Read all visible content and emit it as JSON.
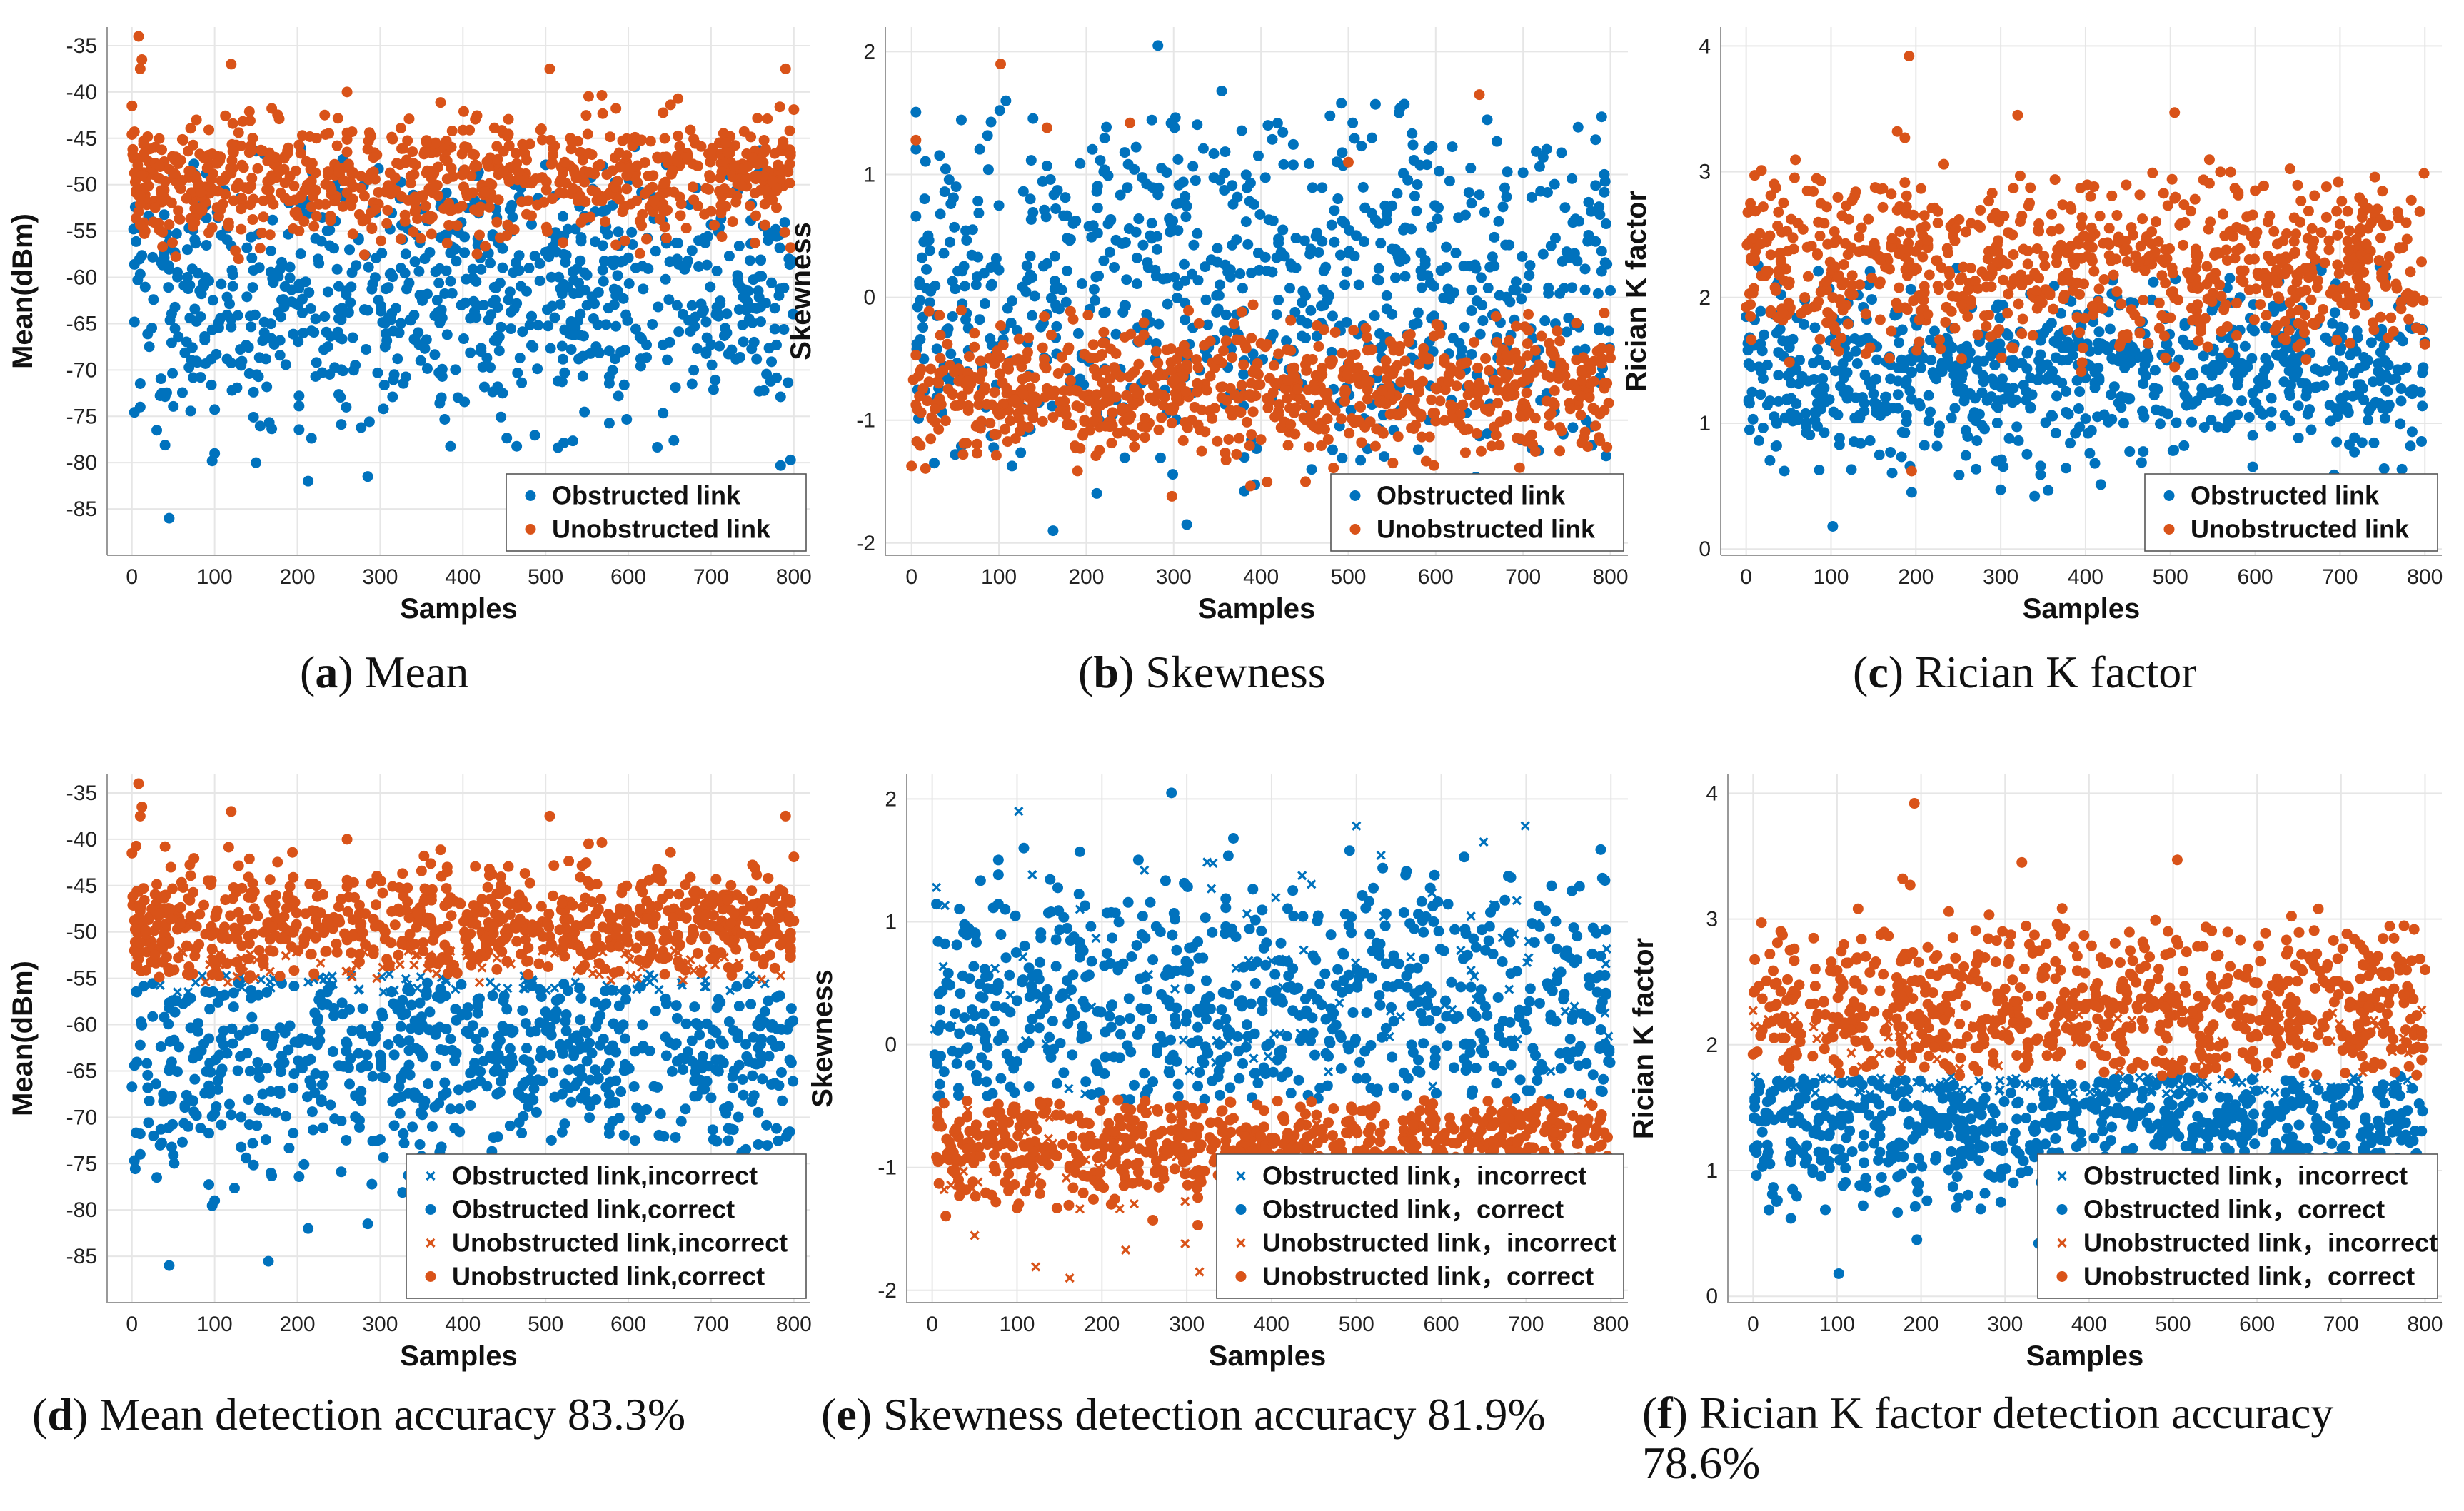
{
  "colors": {
    "blue": "#0072BD",
    "orange": "#D95319",
    "grid": "#e6e6e6",
    "axis": "#999999"
  },
  "chart_data": [
    {
      "id": "a",
      "type": "scatter",
      "marker": "dot",
      "xlabel": "Samples",
      "ylabel": "Mean(dBm)",
      "xlim": [
        -30,
        820
      ],
      "ylim": [
        -90,
        -33
      ],
      "xticks": [
        0,
        100,
        200,
        300,
        400,
        500,
        600,
        700,
        800
      ],
      "yticks": [
        -85,
        -80,
        -75,
        -70,
        -65,
        -60,
        -55,
        -50,
        -45,
        -40,
        -35
      ],
      "legend_position": "bottom-right",
      "series": [
        {
          "name": "Obstructed link",
          "color_key": "blue",
          "marker": "dot",
          "n": 800,
          "gen": {
            "kind": "gauss",
            "mean": -62,
            "sd": 7,
            "min": -86,
            "max": -45,
            "seed": 11
          },
          "points": [
            [
              45,
              -86
            ],
            [
              213,
              -82
            ],
            [
              285,
              -81.5
            ],
            [
              30,
              -76.5
            ],
            [
              10,
              -74
            ],
            [
              100,
              -79
            ],
            [
              150,
              -80
            ]
          ]
        },
        {
          "name": "Unobstructed link",
          "color_key": "orange",
          "marker": "dot",
          "n": 800,
          "gen": {
            "kind": "gauss",
            "mean": -49.5,
            "sd": 3.2,
            "min": -58,
            "max": -40,
            "seed": 23
          },
          "points": [
            [
              8,
              -34
            ],
            [
              12,
              -36.5
            ],
            [
              10,
              -37.5
            ],
            [
              120,
              -37
            ],
            [
              505,
              -37.5
            ],
            [
              790,
              -37.5
            ],
            [
              0,
              -41.5
            ],
            [
              260,
              -40
            ]
          ]
        }
      ]
    },
    {
      "id": "b",
      "type": "scatter",
      "marker": "dot",
      "xlabel": "Samples",
      "ylabel": "Skewness",
      "xlim": [
        -30,
        820
      ],
      "ylim": [
        -2.1,
        2.2
      ],
      "xticks": [
        0,
        100,
        200,
        300,
        400,
        500,
        600,
        700,
        800
      ],
      "yticks": [
        -2,
        -1,
        0,
        1,
        2
      ],
      "legend_position": "bottom-right",
      "series": [
        {
          "name": "Obstructed link",
          "color_key": "blue",
          "marker": "dot",
          "n": 800,
          "gen": {
            "kind": "gauss",
            "mean": 0.15,
            "sd": 0.75,
            "min": -1.6,
            "max": 1.6,
            "seed": 37
          },
          "points": [
            [
              282,
              2.05
            ],
            [
              108,
              1.6
            ],
            [
              315,
              -1.85
            ],
            [
              162,
              -1.9
            ],
            [
              355,
              1.68
            ],
            [
              492,
              1.58
            ]
          ]
        },
        {
          "name": "Unobstructed link",
          "color_key": "orange",
          "marker": "dot",
          "n": 800,
          "gen": {
            "kind": "gauss",
            "mean": -0.75,
            "sd": 0.27,
            "min": -1.55,
            "max": 0,
            "seed": 41
          },
          "points": [
            [
              102,
              1.9
            ],
            [
              5,
              1.28
            ],
            [
              155,
              1.38
            ],
            [
              250,
              1.42
            ],
            [
              500,
              1.1
            ],
            [
              650,
              1.65
            ],
            [
              782,
              -1.5
            ],
            [
              298,
              -1.62
            ]
          ]
        }
      ]
    },
    {
      "id": "c",
      "type": "scatter",
      "marker": "dot",
      "xlabel": "Samples",
      "ylabel": "Rician K factor",
      "xlim": [
        -30,
        820
      ],
      "ylim": [
        -0.05,
        4.15
      ],
      "xticks": [
        0,
        100,
        200,
        300,
        400,
        500,
        600,
        700,
        800
      ],
      "yticks": [
        0,
        1,
        2,
        3,
        4
      ],
      "legend_position": "bottom-right",
      "series": [
        {
          "name": "Obstructed link",
          "color_key": "blue",
          "marker": "dot",
          "n": 800,
          "gen": {
            "kind": "gauss",
            "mean": 1.4,
            "sd": 0.35,
            "min": 0.35,
            "max": 2.3,
            "seed": 53
          },
          "points": [
            [
              102,
              0.18
            ],
            [
              195,
              0.45
            ],
            [
              45,
              0.62
            ],
            [
              340,
              0.42
            ]
          ]
        },
        {
          "name": "Unobstructed link",
          "color_key": "orange",
          "marker": "dot",
          "n": 800,
          "gen": {
            "kind": "gauss",
            "mean": 2.25,
            "sd": 0.38,
            "min": 1.4,
            "max": 3.1,
            "seed": 61
          },
          "points": [
            [
              192,
              3.92
            ],
            [
              320,
              3.45
            ],
            [
              505,
              3.47
            ],
            [
              178,
              3.32
            ],
            [
              187,
              3.27
            ],
            [
              195,
              0.62
            ]
          ]
        }
      ]
    },
    {
      "id": "d",
      "type": "scatter",
      "xlabel": "Samples",
      "ylabel": "Mean(dBm)",
      "xlim": [
        -30,
        820
      ],
      "ylim": [
        -90,
        -33
      ],
      "xticks": [
        0,
        100,
        200,
        300,
        400,
        500,
        600,
        700,
        800
      ],
      "yticks": [
        -85,
        -80,
        -75,
        -70,
        -65,
        -60,
        -55,
        -50,
        -45,
        -40,
        -35
      ],
      "legend_position": "bottom-right",
      "series": [
        {
          "name": "Obstructed link,incorrect",
          "color_key": "blue",
          "marker": "x",
          "n": 70,
          "gen": {
            "kind": "uniform",
            "min": -56.5,
            "max": -54.5,
            "seed": 71
          }
        },
        {
          "name": "Obstructed link,correct",
          "color_key": "blue",
          "marker": "dot",
          "n": 720,
          "gen": {
            "kind": "gauss",
            "mean": -63,
            "sd": 6.5,
            "min": -86,
            "max": -55.5,
            "seed": 11
          },
          "points": [
            [
              45,
              -86
            ],
            [
              213,
              -82
            ],
            [
              285,
              -81.5
            ],
            [
              30,
              -76.5
            ],
            [
              10,
              -74
            ],
            [
              100,
              -79
            ]
          ]
        },
        {
          "name": "Unobstructed link,incorrect",
          "color_key": "orange",
          "marker": "x",
          "n": 80,
          "gen": {
            "kind": "uniform",
            "min": -55.5,
            "max": -52,
            "seed": 83
          }
        },
        {
          "name": "Unobstructed link,correct",
          "color_key": "orange",
          "marker": "dot",
          "n": 780,
          "gen": {
            "kind": "gauss",
            "mean": -49.5,
            "sd": 3.2,
            "min": -55,
            "max": -40,
            "seed": 23
          },
          "points": [
            [
              8,
              -34
            ],
            [
              12,
              -36.5
            ],
            [
              10,
              -37.5
            ],
            [
              120,
              -37
            ],
            [
              505,
              -37.5
            ],
            [
              790,
              -37.5
            ],
            [
              0,
              -41.5
            ],
            [
              260,
              -40
            ]
          ]
        }
      ]
    },
    {
      "id": "e",
      "type": "scatter",
      "xlabel": "Samples",
      "ylabel": "Skewness",
      "xlim": [
        -30,
        820
      ],
      "ylim": [
        -2.1,
        2.2
      ],
      "xticks": [
        0,
        100,
        200,
        300,
        400,
        500,
        600,
        700,
        800
      ],
      "yticks": [
        -2,
        -1,
        0,
        1,
        2
      ],
      "legend_position": "bottom-right",
      "series": [
        {
          "name": "Obstructed link，incorrect",
          "color_key": "blue",
          "marker": "x",
          "n": 90,
          "gen": {
            "kind": "gauss",
            "mean": 0.3,
            "sd": 0.75,
            "min": -0.45,
            "max": 1.9,
            "seed": 91
          },
          "points": [
            [
              102,
              1.9
            ],
            [
              5,
              1.28
            ],
            [
              250,
              1.42
            ],
            [
              650,
              1.65
            ]
          ]
        },
        {
          "name": "Obstructed link，correct",
          "color_key": "blue",
          "marker": "dot",
          "n": 700,
          "gen": {
            "kind": "gauss",
            "mean": 0.3,
            "sd": 0.6,
            "min": -0.45,
            "max": 1.6,
            "seed": 37
          },
          "points": [
            [
              282,
              2.05
            ],
            [
              108,
              1.6
            ],
            [
              355,
              1.68
            ],
            [
              492,
              1.58
            ]
          ]
        },
        {
          "name": "Unobstructed link，incorrect",
          "color_key": "orange",
          "marker": "x",
          "n": 70,
          "gen": {
            "kind": "gauss",
            "mean": -1.0,
            "sd": 0.4,
            "min": -1.95,
            "max": -0.45,
            "seed": 97
          },
          "points": [
            [
              162,
              -1.9
            ],
            [
              315,
              -1.85
            ],
            [
              298,
              -1.62
            ]
          ]
        },
        {
          "name": "Unobstructed link，correct",
          "color_key": "orange",
          "marker": "dot",
          "n": 800,
          "gen": {
            "kind": "gauss",
            "mean": -0.8,
            "sd": 0.25,
            "min": -1.5,
            "max": -0.45,
            "seed": 41
          }
        }
      ]
    },
    {
      "id": "f",
      "type": "scatter",
      "xlabel": "Samples",
      "ylabel": "Rician K factor",
      "xlim": [
        -30,
        820
      ],
      "ylim": [
        -0.05,
        4.15
      ],
      "xticks": [
        0,
        100,
        200,
        300,
        400,
        500,
        600,
        700,
        800
      ],
      "yticks": [
        0,
        1,
        2,
        3,
        4
      ],
      "legend_position": "bottom-right",
      "series": [
        {
          "name": "Obstructed link，incorrect",
          "color_key": "blue",
          "marker": "x",
          "n": 110,
          "gen": {
            "kind": "uniform",
            "min": 1.6,
            "max": 1.75,
            "seed": 101
          }
        },
        {
          "name": "Obstructed link，correct",
          "color_key": "blue",
          "marker": "dot",
          "n": 720,
          "gen": {
            "kind": "gauss",
            "mean": 1.35,
            "sd": 0.3,
            "min": 0.4,
            "max": 1.75,
            "seed": 53
          },
          "points": [
            [
              102,
              0.18
            ],
            [
              195,
              0.45
            ],
            [
              45,
              0.62
            ],
            [
              340,
              0.42
            ]
          ]
        },
        {
          "name": "Unobstructed link，incorrect",
          "color_key": "orange",
          "marker": "x",
          "n": 70,
          "gen": {
            "kind": "uniform",
            "min": 1.75,
            "max": 2.3,
            "seed": 107
          }
        },
        {
          "name": "Unobstructed link，correct",
          "color_key": "orange",
          "marker": "dot",
          "n": 760,
          "gen": {
            "kind": "gauss",
            "mean": 2.25,
            "sd": 0.38,
            "min": 1.75,
            "max": 3.1,
            "seed": 61
          },
          "points": [
            [
              192,
              3.92
            ],
            [
              320,
              3.45
            ],
            [
              505,
              3.47
            ],
            [
              178,
              3.32
            ],
            [
              187,
              3.27
            ]
          ]
        }
      ]
    }
  ],
  "captions": [
    {
      "letter": "a",
      "text": "Mean"
    },
    {
      "letter": "b",
      "text": "Skewness"
    },
    {
      "letter": "c",
      "text": "Rician K factor"
    },
    {
      "letter": "d",
      "text": "Mean detection accuracy 83.3%"
    },
    {
      "letter": "e",
      "text": "Skewness detection accuracy 81.9%"
    },
    {
      "letter": "f",
      "text": "Rician K factor detection accuracy 78.6%"
    }
  ]
}
